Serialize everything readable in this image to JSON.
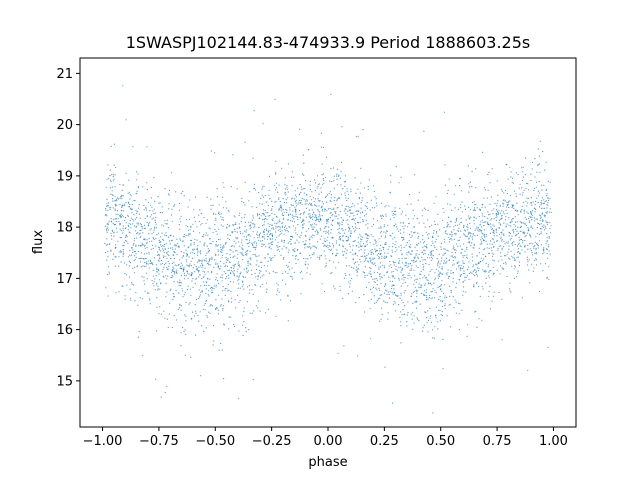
{
  "chart_data": {
    "type": "scatter",
    "title": "1SWASPJ102144.83-474933.9 Period 1888603.25s",
    "xlabel": "phase",
    "ylabel": "flux",
    "xlim": [
      -1.1,
      1.1
    ],
    "ylim": [
      14.1,
      21.3
    ],
    "xticks": [
      -1.0,
      -0.75,
      -0.5,
      -0.25,
      0.0,
      0.25,
      0.5,
      0.75,
      1.0
    ],
    "xtick_labels": [
      "−1.00",
      "−0.75",
      "−0.50",
      "−0.25",
      "0.00",
      "0.25",
      "0.50",
      "0.75",
      "1.00"
    ],
    "yticks": [
      15,
      16,
      17,
      18,
      19,
      20,
      21
    ],
    "ytick_labels": [
      "15",
      "16",
      "17",
      "18",
      "19",
      "20",
      "21"
    ],
    "grid": false,
    "legend": "none",
    "marker_color": "#1f77b4",
    "series": [
      {
        "x": [
          -0.98,
          -0.96,
          -0.94,
          -0.92,
          -0.9,
          -0.88,
          -0.86,
          -0.84,
          -0.82,
          -0.8,
          -0.78,
          -0.76,
          -0.74,
          -0.72,
          -0.7,
          -0.68,
          -0.66,
          -0.64,
          -0.62,
          -0.6,
          -0.58,
          -0.56,
          -0.54,
          -0.52,
          -0.5,
          -0.48,
          -0.46,
          -0.44,
          -0.42,
          -0.4,
          -0.38,
          -0.36,
          -0.34,
          -0.32,
          -0.3,
          -0.28,
          -0.26,
          -0.24,
          -0.22,
          -0.2,
          -0.18,
          -0.16,
          -0.14,
          -0.12,
          -0.1,
          -0.08,
          -0.06,
          -0.04,
          -0.02,
          0.0,
          0.02,
          0.04,
          0.06,
          0.08,
          0.1,
          0.12,
          0.14,
          0.16,
          0.18,
          0.2,
          0.22,
          0.24,
          0.26,
          0.28,
          0.3,
          0.32,
          0.34,
          0.36,
          0.38,
          0.4,
          0.42,
          0.44,
          0.46,
          0.48,
          0.5,
          0.52,
          0.54,
          0.56,
          0.58,
          0.6,
          0.62,
          0.64,
          0.66,
          0.68,
          0.7,
          0.72,
          0.74,
          0.76,
          0.78,
          0.8,
          0.82,
          0.84,
          0.86,
          0.88,
          0.9,
          0.92,
          0.94,
          0.96,
          0.98
        ],
        "y": [
          18.1,
          18.2,
          18.1,
          18.0,
          18.0,
          17.9,
          17.8,
          17.8,
          17.7,
          17.6,
          17.5,
          17.5,
          17.4,
          17.4,
          17.4,
          17.3,
          17.3,
          17.2,
          17.2,
          17.2,
          17.2,
          17.2,
          17.1,
          17.2,
          17.2,
          17.3,
          17.3,
          17.3,
          17.4,
          17.4,
          17.5,
          17.5,
          17.6,
          17.7,
          17.7,
          17.8,
          17.8,
          17.9,
          17.9,
          18.0,
          18.0,
          18.0,
          18.0,
          18.1,
          18.1,
          18.1,
          18.1,
          18.2,
          18.2,
          18.1,
          18.2,
          18.1,
          18.0,
          18.0,
          17.9,
          17.8,
          17.8,
          17.7,
          17.6,
          17.5,
          17.5,
          17.4,
          17.4,
          17.4,
          17.3,
          17.3,
          17.2,
          17.2,
          17.2,
          17.2,
          17.2,
          17.1,
          17.2,
          17.2,
          17.3,
          17.3,
          17.3,
          17.4,
          17.4,
          17.5,
          17.5,
          17.6,
          17.7,
          17.7,
          17.8,
          17.8,
          17.9,
          17.9,
          18.0,
          18.0,
          18.0,
          18.0,
          18.1,
          18.1,
          18.1,
          18.1,
          18.2,
          18.2,
          18.1
        ],
        "spread": [
          0.55,
          0.55,
          0.55,
          0.55,
          0.55,
          0.55,
          0.55,
          0.55,
          0.6,
          0.6,
          0.6,
          0.6,
          0.6,
          0.6,
          0.65,
          0.65,
          0.65,
          0.65,
          0.65,
          0.65,
          0.65,
          0.65,
          0.65,
          0.65,
          0.65,
          0.6,
          0.6,
          0.6,
          0.6,
          0.6,
          0.6,
          0.6,
          0.6,
          0.55,
          0.55,
          0.55,
          0.55,
          0.55,
          0.55,
          0.55,
          0.55,
          0.55,
          0.55,
          0.55,
          0.55,
          0.55,
          0.55,
          0.55,
          0.55,
          0.55,
          0.55,
          0.55,
          0.55,
          0.55,
          0.55,
          0.55,
          0.55,
          0.55,
          0.6,
          0.6,
          0.6,
          0.6,
          0.6,
          0.6,
          0.65,
          0.65,
          0.65,
          0.65,
          0.65,
          0.65,
          0.65,
          0.65,
          0.65,
          0.65,
          0.65,
          0.6,
          0.6,
          0.6,
          0.6,
          0.6,
          0.6,
          0.6,
          0.6,
          0.55,
          0.55,
          0.55,
          0.55,
          0.55,
          0.55,
          0.55,
          0.55,
          0.55,
          0.55,
          0.55,
          0.55,
          0.55,
          0.55,
          0.55,
          0.55
        ]
      }
    ]
  }
}
